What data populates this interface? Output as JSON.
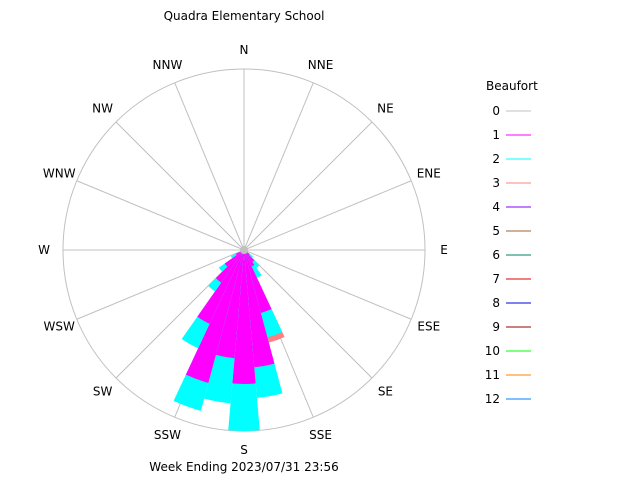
{
  "chart_data": {
    "type": "windrose",
    "title": "Quadra Elementary School",
    "subtitle": "Week Ending 2023/07/31 23:56",
    "compass_labels": [
      "N",
      "NNE",
      "NE",
      "ENE",
      "E",
      "ESE",
      "SE",
      "SSE",
      "S",
      "SSW",
      "SW",
      "WSW",
      "W",
      "WNW",
      "NW",
      "NNW"
    ],
    "grid": true,
    "legend": {
      "title": "Beaufort",
      "placement": "right",
      "entries": [
        {
          "label": "0",
          "color": "#c0c0c0"
        },
        {
          "label": "1",
          "color": "#ff00ff"
        },
        {
          "label": "2",
          "color": "#00ffff"
        },
        {
          "label": "3",
          "color": "#ff8080"
        },
        {
          "label": "4",
          "color": "#8000ff"
        },
        {
          "label": "5",
          "color": "#a0602d"
        },
        {
          "label": "6",
          "color": "#008060"
        },
        {
          "label": "7",
          "color": "#e00000"
        },
        {
          "label": "8",
          "color": "#0000e0"
        },
        {
          "label": "9",
          "color": "#900000"
        },
        {
          "label": "10",
          "color": "#00ff00"
        },
        {
          "label": "11",
          "color": "#ff8000"
        },
        {
          "label": "12",
          "color": "#0080ff"
        }
      ]
    },
    "calm_color": "#c0c0c0",
    "bin_width_deg": 10,
    "note_units": "cumulative frequency relative to outer ring (0-1)",
    "bins": [
      {
        "direction_deg": 130,
        "cumulative": [
          0.04,
          0.06
        ]
      },
      {
        "direction_deg": 140,
        "cumulative": [
          0.08,
          0.12
        ]
      },
      {
        "direction_deg": 150,
        "cumulative": [
          0.1,
          0.17
        ]
      },
      {
        "direction_deg": 160,
        "cumulative": [
          0.36,
          0.5,
          0.53
        ]
      },
      {
        "direction_deg": 170,
        "cumulative": [
          0.65,
          0.82
        ]
      },
      {
        "direction_deg": 180,
        "cumulative": [
          0.74,
          1.0
        ]
      },
      {
        "direction_deg": 190,
        "cumulative": [
          0.6,
          0.85
        ]
      },
      {
        "direction_deg": 200,
        "cumulative": [
          0.76,
          0.92
        ]
      },
      {
        "direction_deg": 210,
        "cumulative": [
          0.45,
          0.6
        ]
      },
      {
        "direction_deg": 220,
        "cumulative": [
          0.22,
          0.28
        ]
      },
      {
        "direction_deg": 230,
        "cumulative": [
          0.13,
          0.17
        ]
      },
      {
        "direction_deg": 240,
        "cumulative": [
          0.05,
          0.08
        ]
      }
    ]
  }
}
